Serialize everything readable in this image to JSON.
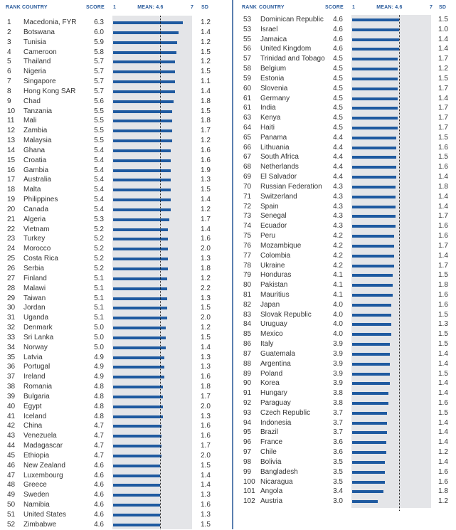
{
  "header": {
    "rank": "RANK",
    "country": "COUNTRY",
    "score": "SCORE",
    "axis_min": "1",
    "mean": "MEAN: 4.6",
    "axis_max": "7",
    "sd": "SD"
  },
  "chart_data": {
    "type": "bar",
    "orientation": "horizontal",
    "xlim": [
      1,
      7
    ],
    "mean": 4.6,
    "columns": [
      "rank",
      "country",
      "score",
      "sd"
    ],
    "left_rows": [
      [
        1,
        "Macedonia, FYR",
        6.3,
        1.2
      ],
      [
        2,
        "Botswana",
        6.0,
        1.4
      ],
      [
        3,
        "Tunisia",
        5.9,
        1.2
      ],
      [
        4,
        "Cameroon",
        5.8,
        1.5
      ],
      [
        5,
        "Thailand",
        5.7,
        1.2
      ],
      [
        6,
        "Nigeria",
        5.7,
        1.5
      ],
      [
        7,
        "Singapore",
        5.7,
        1.1
      ],
      [
        8,
        "Hong Kong SAR",
        5.7,
        1.4
      ],
      [
        9,
        "Chad",
        5.6,
        1.8
      ],
      [
        10,
        "Tanzania",
        5.5,
        1.5
      ],
      [
        11,
        "Mali",
        5.5,
        1.8
      ],
      [
        12,
        "Zambia",
        5.5,
        1.7
      ],
      [
        13,
        "Malaysia",
        5.5,
        1.2
      ],
      [
        14,
        "Ghana",
        5.4,
        1.6
      ],
      [
        15,
        "Croatia",
        5.4,
        1.6
      ],
      [
        16,
        "Gambia",
        5.4,
        1.9
      ],
      [
        17,
        "Australia",
        5.4,
        1.3
      ],
      [
        18,
        "Malta",
        5.4,
        1.5
      ],
      [
        19,
        "Philippines",
        5.4,
        1.4
      ],
      [
        20,
        "Canada",
        5.4,
        1.2
      ],
      [
        21,
        "Algeria",
        5.3,
        1.7
      ],
      [
        22,
        "Vietnam",
        5.2,
        1.4
      ],
      [
        23,
        "Turkey",
        5.2,
        1.6
      ],
      [
        24,
        "Morocco",
        5.2,
        2.0
      ],
      [
        25,
        "Costa Rica",
        5.2,
        1.3
      ],
      [
        26,
        "Serbia",
        5.2,
        1.8
      ],
      [
        27,
        "Finland",
        5.1,
        1.2
      ],
      [
        28,
        "Malawi",
        5.1,
        2.2
      ],
      [
        29,
        "Taiwan",
        5.1,
        1.3
      ],
      [
        30,
        "Jordan",
        5.1,
        1.5
      ],
      [
        31,
        "Uganda",
        5.1,
        2.0
      ],
      [
        32,
        "Denmark",
        5.0,
        1.2
      ],
      [
        33,
        "Sri Lanka",
        5.0,
        1.5
      ],
      [
        34,
        "Norway",
        5.0,
        1.4
      ],
      [
        35,
        "Latvia",
        4.9,
        1.3
      ],
      [
        36,
        "Portugal",
        4.9,
        1.3
      ],
      [
        37,
        "Ireland",
        4.9,
        1.6
      ],
      [
        38,
        "Romania",
        4.8,
        1.8
      ],
      [
        39,
        "Bulgaria",
        4.8,
        1.7
      ],
      [
        40,
        "Egypt",
        4.8,
        2.0
      ],
      [
        41,
        "Iceland",
        4.8,
        1.3
      ],
      [
        42,
        "China",
        4.7,
        1.6
      ],
      [
        43,
        "Venezuela",
        4.7,
        1.6
      ],
      [
        44,
        "Madagascar",
        4.7,
        1.7
      ],
      [
        45,
        "Ethiopia",
        4.7,
        2.0
      ],
      [
        46,
        "New Zealand",
        4.6,
        1.5
      ],
      [
        47,
        "Luxembourg",
        4.6,
        1.4
      ],
      [
        48,
        "Greece",
        4.6,
        1.4
      ],
      [
        49,
        "Sweden",
        4.6,
        1.3
      ],
      [
        50,
        "Namibia",
        4.6,
        1.6
      ],
      [
        51,
        "United States",
        4.6,
        1.3
      ],
      [
        52,
        "Zimbabwe",
        4.6,
        1.5
      ]
    ],
    "right_rows": [
      [
        53,
        "Dominican Republic",
        4.6,
        1.5
      ],
      [
        53,
        "Israel",
        4.6,
        1.0
      ],
      [
        55,
        "Jamaica",
        4.6,
        1.4
      ],
      [
        56,
        "United Kingdom",
        4.6,
        1.4
      ],
      [
        57,
        "Trinidad and Tobago",
        4.5,
        1.7
      ],
      [
        58,
        "Belgium",
        4.5,
        1.2
      ],
      [
        59,
        "Estonia",
        4.5,
        1.5
      ],
      [
        60,
        "Slovenia",
        4.5,
        1.7
      ],
      [
        61,
        "Germany",
        4.5,
        1.4
      ],
      [
        61,
        "India",
        4.5,
        1.7
      ],
      [
        63,
        "Kenya",
        4.5,
        1.7
      ],
      [
        64,
        "Haiti",
        4.5,
        1.7
      ],
      [
        65,
        "Panama",
        4.4,
        1.5
      ],
      [
        66,
        "Lithuania",
        4.4,
        1.6
      ],
      [
        67,
        "South Africa",
        4.4,
        1.5
      ],
      [
        68,
        "Netherlands",
        4.4,
        1.6
      ],
      [
        69,
        "El Salvador",
        4.4,
        1.4
      ],
      [
        70,
        "Russian Federation",
        4.3,
        1.8
      ],
      [
        71,
        "Switzerland",
        4.3,
        1.4
      ],
      [
        72,
        "Spain",
        4.3,
        1.4
      ],
      [
        73,
        "Senegal",
        4.3,
        1.7
      ],
      [
        74,
        "Ecuador",
        4.3,
        1.6
      ],
      [
        75,
        "Peru",
        4.2,
        1.6
      ],
      [
        76,
        "Mozambique",
        4.2,
        1.7
      ],
      [
        77,
        "Colombia",
        4.2,
        1.4
      ],
      [
        78,
        "Ukraine",
        4.2,
        1.7
      ],
      [
        79,
        "Honduras",
        4.1,
        1.5
      ],
      [
        80,
        "Pakistan",
        4.1,
        1.8
      ],
      [
        81,
        "Mauritius",
        4.1,
        1.6
      ],
      [
        82,
        "Japan",
        4.0,
        1.6
      ],
      [
        83,
        "Slovak Republic",
        4.0,
        1.5
      ],
      [
        84,
        "Uruguay",
        4.0,
        1.3
      ],
      [
        85,
        "Mexico",
        4.0,
        1.5
      ],
      [
        86,
        "Italy",
        3.9,
        1.5
      ],
      [
        87,
        "Guatemala",
        3.9,
        1.4
      ],
      [
        88,
        "Argentina",
        3.9,
        1.4
      ],
      [
        89,
        "Poland",
        3.9,
        1.5
      ],
      [
        90,
        "Korea",
        3.9,
        1.4
      ],
      [
        91,
        "Hungary",
        3.8,
        1.4
      ],
      [
        92,
        "Paraguay",
        3.8,
        1.6
      ],
      [
        93,
        "Czech Republic",
        3.7,
        1.5
      ],
      [
        94,
        "Indonesia",
        3.7,
        1.4
      ],
      [
        95,
        "Brazil",
        3.7,
        1.4
      ],
      [
        96,
        "France",
        3.6,
        1.4
      ],
      [
        97,
        "Chile",
        3.6,
        1.2
      ],
      [
        98,
        "Bolivia",
        3.5,
        1.4
      ],
      [
        99,
        "Bangladesh",
        3.5,
        1.6
      ],
      [
        100,
        "Nicaragua",
        3.5,
        1.6
      ],
      [
        101,
        "Angola",
        3.4,
        1.8
      ],
      [
        102,
        "Austria",
        3.0,
        1.2
      ]
    ]
  },
  "colors": {
    "bar": "#1f5aa0",
    "plot_bg": "#e4e5e8",
    "header": "#2b5c9c"
  }
}
